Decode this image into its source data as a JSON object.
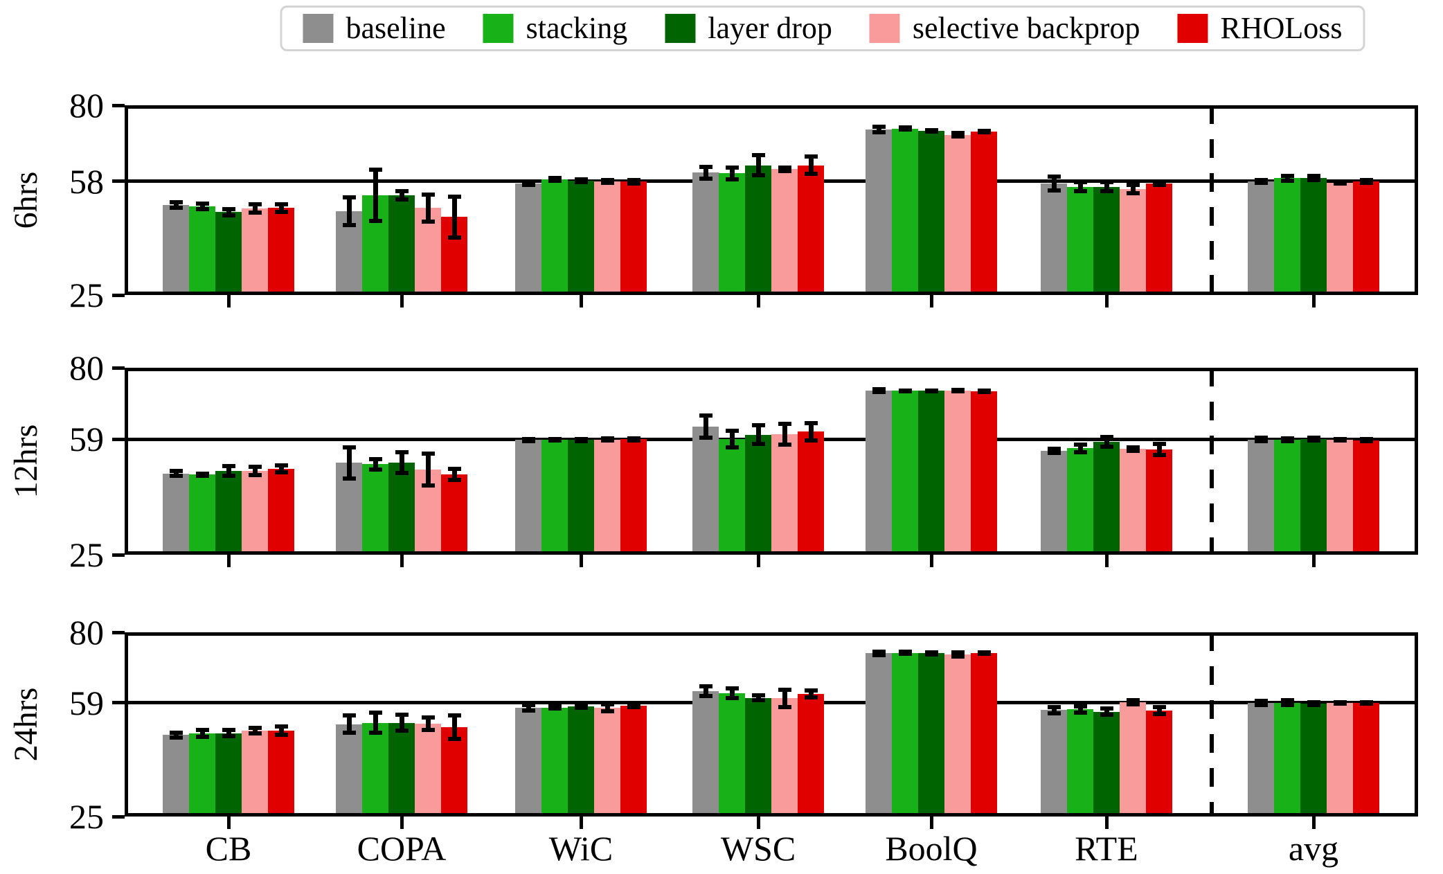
{
  "figure": {
    "background": "#ffffff"
  },
  "legend": {
    "position": "top center",
    "items": [
      "baseline",
      "stacking",
      "layer drop",
      "selective backprop",
      "RHOLoss"
    ]
  },
  "chart_data": {
    "type": "bar",
    "title": "",
    "xlabel": "",
    "categories": [
      "CB",
      "COPA",
      "WiC",
      "WSC",
      "BoolQ",
      "RTE",
      "avg"
    ],
    "series_names": [
      "baseline",
      "stacking",
      "layer drop",
      "selective backprop",
      "RHOLoss"
    ],
    "series_colors": [
      "#8e8e8e",
      "#18b118",
      "#006400",
      "#fa9b9b",
      "#e00000"
    ],
    "error_bar_color": "#000000",
    "grid": false,
    "legend_position": "top center",
    "separator": {
      "type": "dashed-vertical-line",
      "between": [
        "RTE",
        "avg"
      ]
    },
    "rows": [
      {
        "label": "6hrs",
        "ylim": [
          25,
          80
        ],
        "yticks": [
          80,
          58,
          25
        ],
        "refline": 58,
        "series": [
          {
            "name": "baseline",
            "values": [
              51.0,
              49.3,
              57.4,
              60.5,
              72.9,
              57.4,
              58.0
            ],
            "errors": [
              0.8,
              4.1,
              0.5,
              1.7,
              0.8,
              2.0,
              0.4
            ]
          },
          {
            "name": "stacking",
            "values": [
              50.7,
              53.9,
              58.5,
              60.3,
              73.2,
              56.4,
              58.9
            ],
            "errors": [
              0.8,
              7.5,
              0.4,
              1.7,
              0.3,
              1.3,
              0.7
            ]
          },
          {
            "name": "layer drop",
            "values": [
              49.0,
              53.9,
              58.2,
              62.6,
              72.6,
              56.4,
              58.9
            ],
            "errors": [
              0.9,
              1.2,
              0.4,
              2.9,
              0.25,
              1.3,
              0.6
            ]
          },
          {
            "name": "selective backprop",
            "values": [
              50.0,
              50.2,
              58.0,
              61.5,
              71.4,
              55.8,
              57.6
            ],
            "errors": [
              1.2,
              4.0,
              0.4,
              0.5,
              0.5,
              1.2,
              0.25
            ]
          },
          {
            "name": "RHOLoss",
            "values": [
              50.2,
              47.6,
              57.9,
              62.6,
              72.3,
              57.3,
              57.9
            ],
            "errors": [
              1.1,
              5.9,
              0.5,
              2.5,
              0.2,
              0.4,
              0.4
            ]
          }
        ]
      },
      {
        "label": "12hrs",
        "ylim": [
          25,
          80
        ],
        "yticks": [
          80,
          59,
          25
        ],
        "refline": 59,
        "series": [
          {
            "name": "baseline",
            "values": [
              48.9,
              52.0,
              58.8,
              62.7,
              73.3,
              55.5,
              58.9
            ],
            "errors": [
              0.7,
              4.6,
              0.3,
              3.2,
              0.4,
              0.6,
              0.5
            ]
          },
          {
            "name": "stacking",
            "values": [
              48.6,
              51.6,
              58.8,
              59.0,
              73.2,
              56.3,
              58.8
            ],
            "errors": [
              0.3,
              1.5,
              0.2,
              2.4,
              0.15,
              1.1,
              0.4
            ]
          },
          {
            "name": "layer drop",
            "values": [
              49.7,
              52.1,
              58.8,
              60.3,
              73.2,
              58.2,
              59.0
            ],
            "errors": [
              1.4,
              3.0,
              0.3,
              2.7,
              0.15,
              1.5,
              0.4
            ]
          },
          {
            "name": "selective backprop",
            "values": [
              49.7,
              50.1,
              58.9,
              60.5,
              73.3,
              56.1,
              58.8
            ],
            "errors": [
              1.2,
              4.7,
              0.3,
              3.1,
              0.15,
              0.5,
              0.2
            ]
          },
          {
            "name": "RHOLoss",
            "values": [
              50.2,
              48.6,
              59.0,
              61.2,
              73.1,
              55.9,
              58.7
            ],
            "errors": [
              1.0,
              1.7,
              0.3,
              2.5,
              0.15,
              1.6,
              0.3
            ]
          }
        ]
      },
      {
        "label": "24hrs",
        "ylim": [
          25,
          80
        ],
        "yticks": [
          80,
          59,
          25
        ],
        "refline": 59,
        "series": [
          {
            "name": "baseline",
            "values": [
              49.3,
              52.6,
              57.4,
              62.4,
              73.7,
              56.8,
              58.9
            ],
            "errors": [
              0.7,
              2.5,
              0.8,
              1.5,
              0.6,
              0.9,
              0.6
            ]
          },
          {
            "name": "stacking",
            "values": [
              49.8,
              53.0,
              57.5,
              61.8,
              73.9,
              57.0,
              59.0
            ],
            "errors": [
              1.1,
              3.0,
              0.3,
              1.5,
              0.4,
              0.9,
              0.8
            ]
          },
          {
            "name": "layer drop",
            "values": [
              49.9,
              53.0,
              57.9,
              60.4,
              73.7,
              56.3,
              58.7
            ],
            "errors": [
              1.0,
              2.3,
              0.5,
              0.7,
              0.3,
              0.9,
              0.4
            ]
          },
          {
            "name": "selective backprop",
            "values": [
              50.6,
              52.7,
              57.5,
              60.3,
              73.4,
              59.1,
              58.9
            ],
            "errors": [
              0.8,
              1.8,
              1.0,
              2.6,
              0.6,
              0.7,
              0.2
            ]
          },
          {
            "name": "RHOLoss",
            "values": [
              50.6,
              51.6,
              58.1,
              61.6,
              73.8,
              56.7,
              58.9
            ],
            "errors": [
              1.2,
              3.5,
              0.4,
              1.0,
              0.25,
              1.0,
              0.3
            ]
          }
        ]
      }
    ]
  }
}
